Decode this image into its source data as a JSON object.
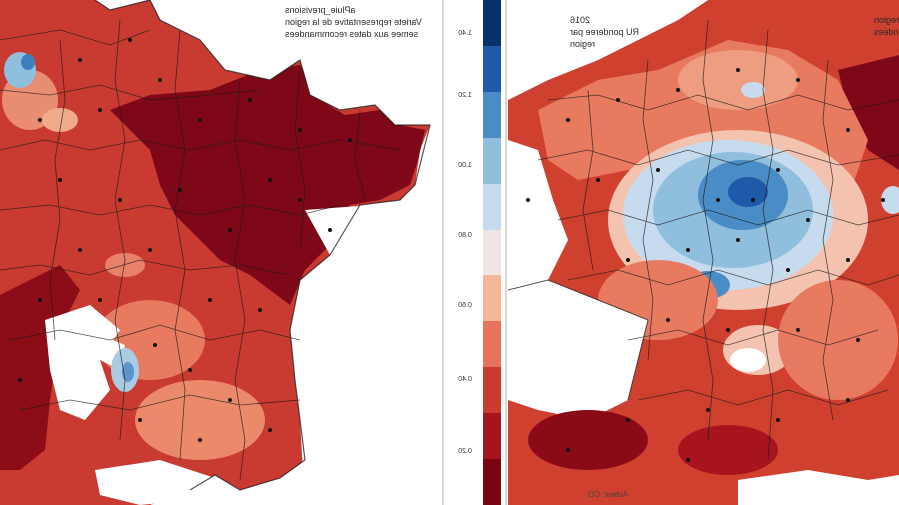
{
  "left_map": {
    "caption_lines": [
      "aPluie_previsions",
      "Variete representative de la region",
      "semee aux dates recommandees"
    ],
    "source": ""
  },
  "right_map": {
    "caption_lines": [
      "2016",
      "RU ponderee par",
      "region"
    ],
    "caption_right_lines": [
      "region",
      "ndees"
    ],
    "source": "Auteur: CO"
  },
  "colorbar": {
    "ticks": [
      "1.40",
      "1.20",
      "1.00",
      "0.80",
      "0.60",
      "0.40",
      "0.20"
    ],
    "colors": [
      "#08306b",
      "#1f5aa8",
      "#4a8cc6",
      "#90bedd",
      "#c6dcee",
      "#f2e6e4",
      "#f4b79a",
      "#e6735a",
      "#cc3b30",
      "#a8141d",
      "#7a0512"
    ]
  }
}
